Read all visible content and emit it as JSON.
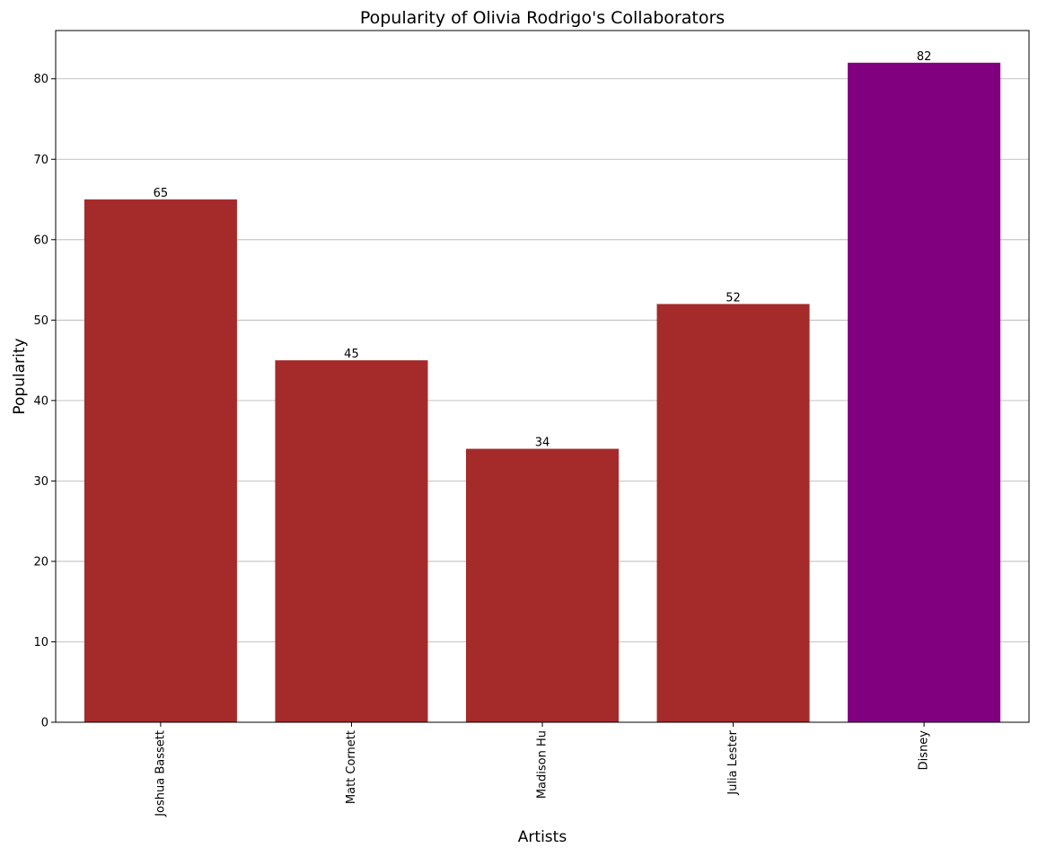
{
  "chart_data": {
    "type": "bar",
    "title": "Popularity of Olivia Rodrigo's Collaborators",
    "xlabel": "Artists",
    "ylabel": "Popularity",
    "categories": [
      "Joshua Bassett",
      "Matt Cornett",
      "Madison Hu",
      "Julia Lester",
      "Disney"
    ],
    "values": [
      65,
      45,
      34,
      52,
      82
    ],
    "bar_colors": [
      "#a52a2a",
      "#a52a2a",
      "#a52a2a",
      "#a52a2a",
      "#800080"
    ],
    "ylim": [
      0,
      86
    ],
    "yticks": [
      0,
      10,
      20,
      30,
      40,
      50,
      60,
      70,
      80
    ],
    "grid": "y-axis",
    "legend": "none",
    "data_labels": true,
    "x_tick_rotation": 90
  }
}
